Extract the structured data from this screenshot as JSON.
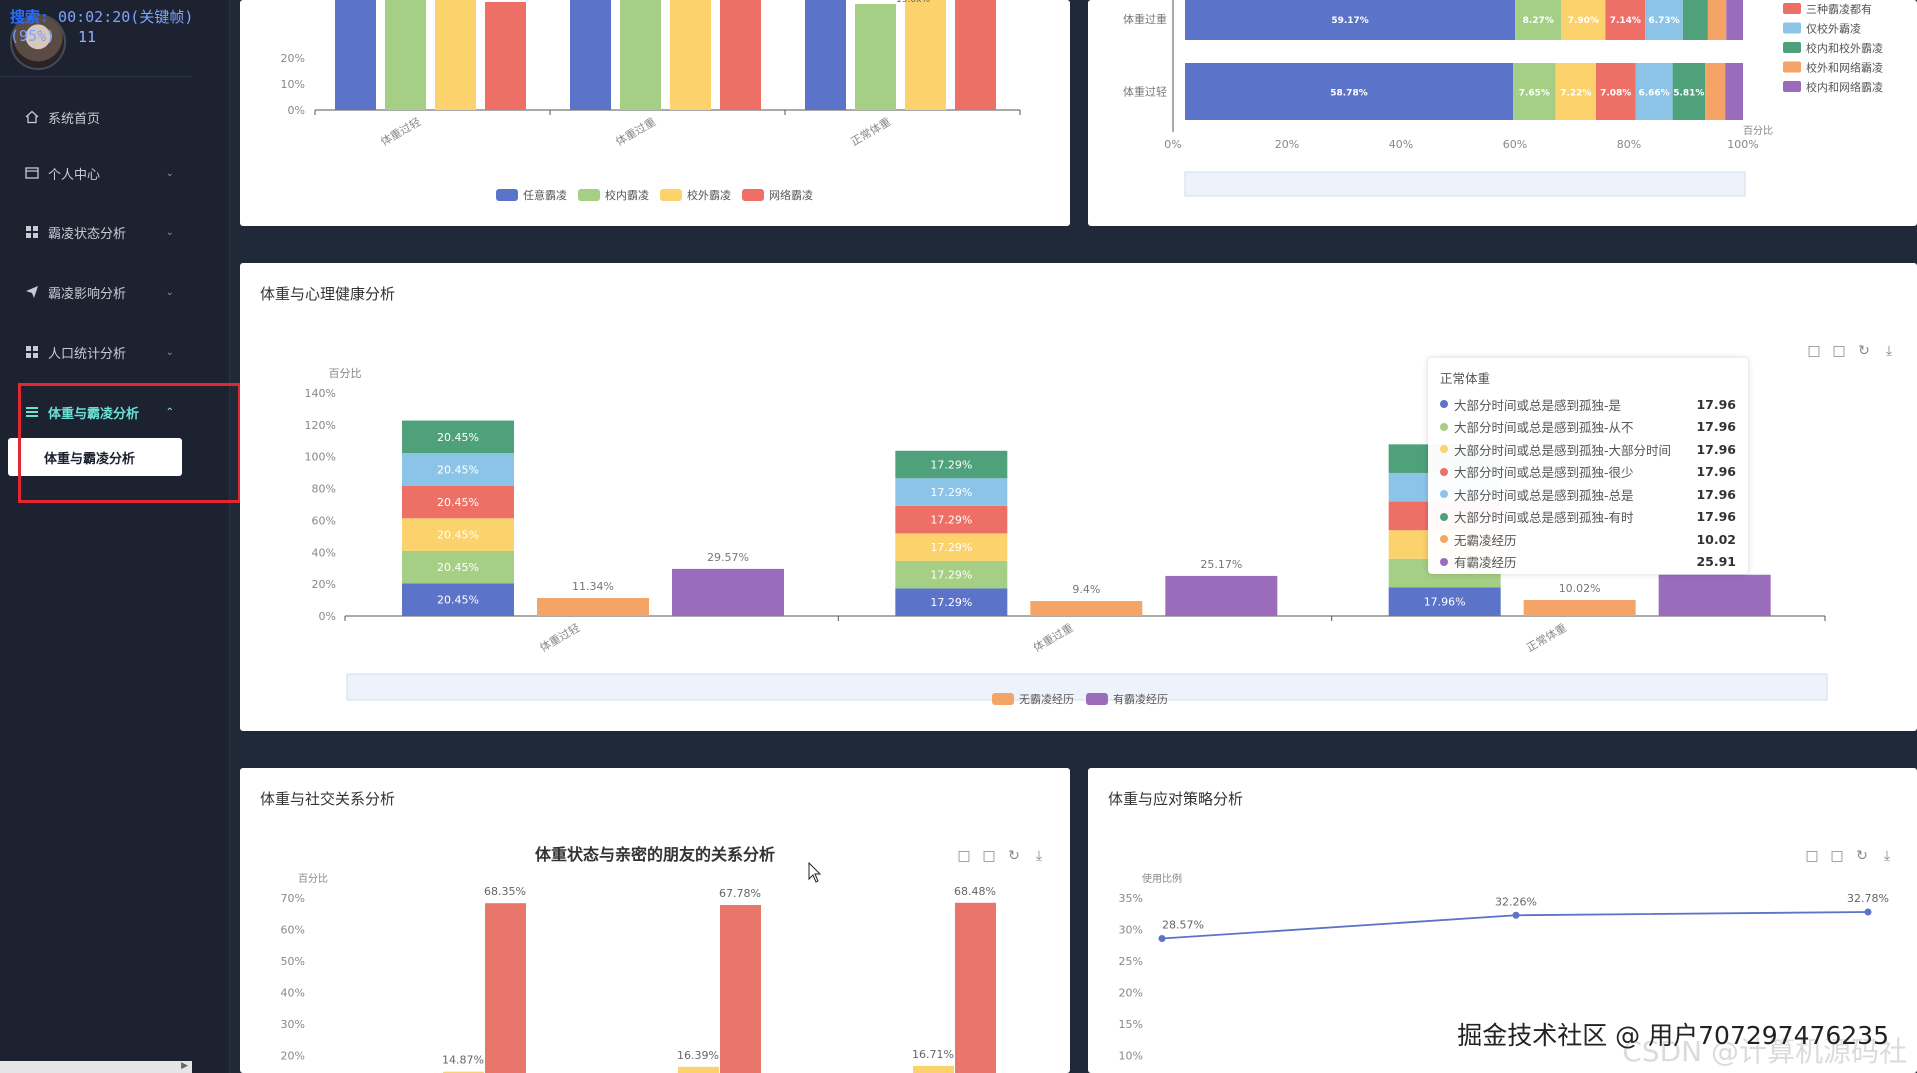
{
  "sidebar": {
    "overlay_text": "搜索: 00:02:20(关键帧)(95%)",
    "overlay_prefix": "搜索:",
    "overlay_rest": " 00:02:20(关键帧)(95%)",
    "user_number": "11",
    "items": [
      {
        "label": "系统首页",
        "icon": "home-icon"
      },
      {
        "label": "个人中心",
        "icon": "user-card-icon"
      },
      {
        "label": "霸凌状态分析",
        "icon": "grid-icon"
      },
      {
        "label": "霸凌影响分析",
        "icon": "send-icon"
      },
      {
        "label": "人口统计分析",
        "icon": "grid-icon"
      },
      {
        "label": "体重与霸凌分析",
        "icon": "list-icon"
      }
    ],
    "submenu_label": "体重与霸凌分析"
  },
  "cards": {
    "top_left": {
      "chart_data": {
        "type": "bar",
        "categories": [
          "体重过轻",
          "体重过重",
          "正常体重"
        ],
        "y_ticks": [
          "20%",
          "10%",
          "0%"
        ],
        "series": [
          {
            "name": "任意霸凌",
            "color": "#5b73c9"
          },
          {
            "name": "校内霸凌",
            "color": "#a4cf84"
          },
          {
            "name": "校外霸凌",
            "color": "#fbd26c"
          },
          {
            "name": "网络霸凌",
            "color": "#ee6f66"
          }
        ],
        "partial_label": "19.0x%"
      }
    },
    "top_right": {
      "chart_data": {
        "type": "bar",
        "orientation": "horizontal-stacked",
        "categories": [
          "体重过重",
          "体重过轻"
        ],
        "x_ticks": [
          "0%",
          "20%",
          "40%",
          "60%",
          "80%",
          "100%"
        ],
        "xlabel": "百分比",
        "rows": [
          {
            "category": "体重过重",
            "labels": [
              "59.17%",
              "8.27%",
              "7.90%",
              "7.14%",
              "6.73%"
            ],
            "values": [
              59.17,
              8.27,
              7.9,
              7.14,
              6.73,
              4.5,
              3.3,
              2.99
            ]
          },
          {
            "category": "体重过轻",
            "labels": [
              "58.78%",
              "7.65%",
              "7.22%",
              "7.08%",
              "6.66%",
              "5.81%"
            ],
            "values": [
              58.78,
              7.65,
              7.22,
              7.08,
              6.66,
              5.81,
              3.6,
              3.2
            ]
          }
        ],
        "segment_colors": [
          "#5b73c9",
          "#a4cf84",
          "#fbd26c",
          "#ee6f66",
          "#8cc4e8",
          "#4ea17a",
          "#f4a467",
          "#9c6cbc"
        ],
        "legend": [
          {
            "name": "三种霸凌都有",
            "color": "#ee6f66"
          },
          {
            "name": "仅校外霸凌",
            "color": "#8cc4e8"
          },
          {
            "name": "校内和校外霸凌",
            "color": "#4ea17a"
          },
          {
            "name": "校外和网络霸凌",
            "color": "#f4a467"
          },
          {
            "name": "校内和网络霸凌",
            "color": "#9c6cbc"
          }
        ]
      }
    },
    "middle": {
      "title": "体重与心理健康分析",
      "chart_data": {
        "type": "bar",
        "ylabel": "百分比",
        "y_ticks": [
          "140%",
          "120%",
          "100%",
          "80%",
          "60%",
          "40%",
          "20%",
          "0%"
        ],
        "ylim": [
          0,
          140
        ],
        "categories": [
          "体重过轻",
          "体重过重",
          "正常体重"
        ],
        "stack_colors": [
          "#5b73c9",
          "#a4cf84",
          "#fbd26c",
          "#ee6f66",
          "#8cc4e8",
          "#4ea17a"
        ],
        "stacks": [
          {
            "segment_value": 20.45,
            "segment_label": "20.45%",
            "segments": 6
          },
          {
            "segment_value": 17.29,
            "segment_label": "17.29%",
            "segments": 6
          },
          {
            "segment_value": 17.96,
            "segment_label": "17.96%",
            "segments": 6
          }
        ],
        "no_bully": {
          "name": "无霸凌经历",
          "color": "#f4a467",
          "values": [
            11.34,
            9.4,
            10.02
          ],
          "labels": [
            "11.34%",
            "9.4%",
            "10.02%"
          ]
        },
        "has_bully": {
          "name": "有霸凌经历",
          "color": "#9c6cbc",
          "values": [
            29.57,
            25.17,
            25.91
          ],
          "labels": [
            "29.57%",
            "25.17%",
            ""
          ]
        },
        "legend": [
          {
            "name": "无霸凌经历",
            "color": "#f4a467"
          },
          {
            "name": "有霸凌经历",
            "color": "#9c6cbc"
          }
        ]
      },
      "tooltip": {
        "title": "正常体重",
        "rows": [
          {
            "label": "大部分时间或总是感到孤独-是",
            "value": "17.96",
            "color": "#5b73c9"
          },
          {
            "label": "大部分时间或总是感到孤独-从不",
            "value": "17.96",
            "color": "#a4cf84"
          },
          {
            "label": "大部分时间或总是感到孤独-大部分时间",
            "value": "17.96",
            "color": "#fbd26c"
          },
          {
            "label": "大部分时间或总是感到孤独-很少",
            "value": "17.96",
            "color": "#ee6f66"
          },
          {
            "label": "大部分时间或总是感到孤独-总是",
            "value": "17.96",
            "color": "#8cc4e8"
          },
          {
            "label": "大部分时间或总是感到孤独-有时",
            "value": "17.96",
            "color": "#4ea17a"
          },
          {
            "label": "无霸凌经历",
            "value": "10.02",
            "color": "#f4a467"
          },
          {
            "label": "有霸凌经历",
            "value": "25.91",
            "color": "#9c6cbc"
          }
        ]
      }
    },
    "bottom_left": {
      "title": "体重与社交关系分析",
      "chart_data": {
        "type": "bar",
        "title": "体重状态与亲密的朋友的关系分析",
        "ylabel": "百分比",
        "y_ticks": [
          "70%",
          "60%",
          "50%",
          "40%",
          "30%",
          "20%"
        ],
        "groups": [
          {
            "tall": 68.35,
            "tall_label": "68.35%",
            "short": 14.87,
            "short_label": "14.87%"
          },
          {
            "tall": 67.78,
            "tall_label": "67.78%",
            "short": 16.39,
            "short_label": "16.39%"
          },
          {
            "tall": 68.48,
            "tall_label": "68.48%",
            "short": 16.71,
            "short_label": "16.71%"
          }
        ]
      }
    },
    "bottom_right": {
      "title": "体重与应对策略分析",
      "chart_data": {
        "type": "line",
        "ylabel": "使用比例",
        "y_ticks": [
          "35%",
          "30%",
          "25%",
          "20%",
          "15%",
          "10%"
        ],
        "ylim": [
          10,
          35
        ],
        "values": [
          28.57,
          32.26,
          32.78
        ],
        "labels": [
          "28.57%",
          "32.26%",
          "32.78%"
        ],
        "color": "#5b73c9"
      }
    }
  },
  "watermark": "掘金技术社区 @ 用户707297476235",
  "watermark2": "CSDN @计算机源码社"
}
